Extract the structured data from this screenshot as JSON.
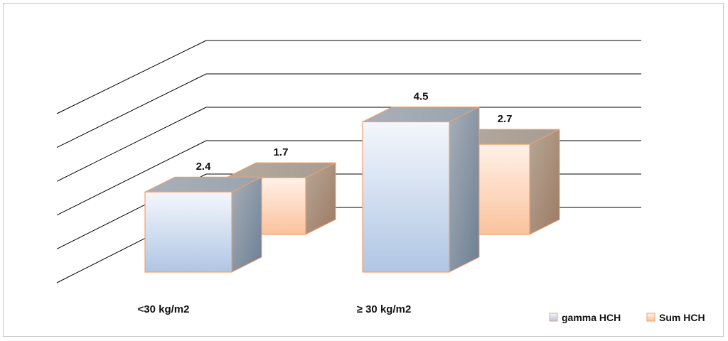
{
  "chart_data": {
    "type": "bar",
    "categories": [
      "<30 kg/m2",
      "≥ 30 kg/m2"
    ],
    "series": [
      {
        "name": "gamma HCH",
        "values": [
          2.4,
          4.5
        ]
      },
      {
        "name": "Sum HCH",
        "values": [
          1.7,
          2.7
        ]
      }
    ],
    "ylim": [
      0,
      5
    ],
    "grid": true,
    "legend": "bottom-right",
    "colors": {
      "gamma HCH": "#b6c9e4",
      "Sum HCH": "#fcd2b4",
      "border": "#f0a070"
    }
  }
}
